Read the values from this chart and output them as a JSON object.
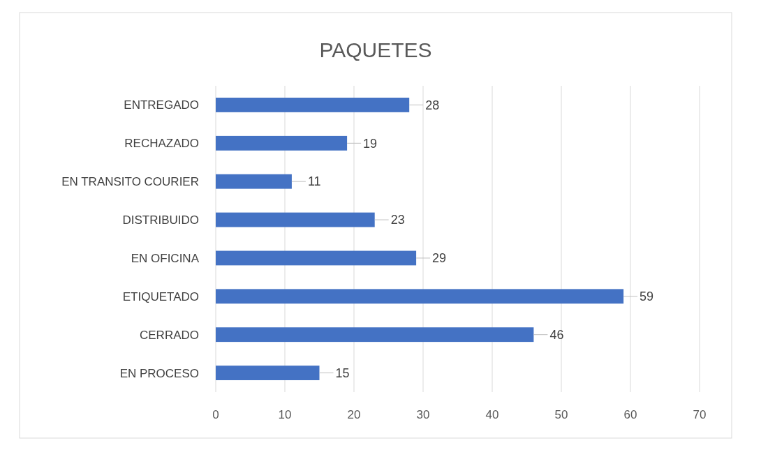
{
  "chart_data": {
    "type": "bar",
    "title": "PAQUETES",
    "orientation": "horizontal",
    "categories": [
      "ENTREGADO",
      "RECHAZADO",
      "EN TRANSITO COURIER",
      "DISTRIBUIDO",
      "EN OFICINA",
      "ETIQUETADO",
      "CERRADO",
      "EN PROCESO"
    ],
    "values": [
      28,
      19,
      11,
      23,
      29,
      59,
      46,
      15
    ],
    "color": "#4472c4",
    "xlim": [
      0,
      70
    ],
    "xticks": [
      0,
      10,
      20,
      30,
      40,
      50,
      60,
      70
    ],
    "grid": "x",
    "data_labels": true
  }
}
